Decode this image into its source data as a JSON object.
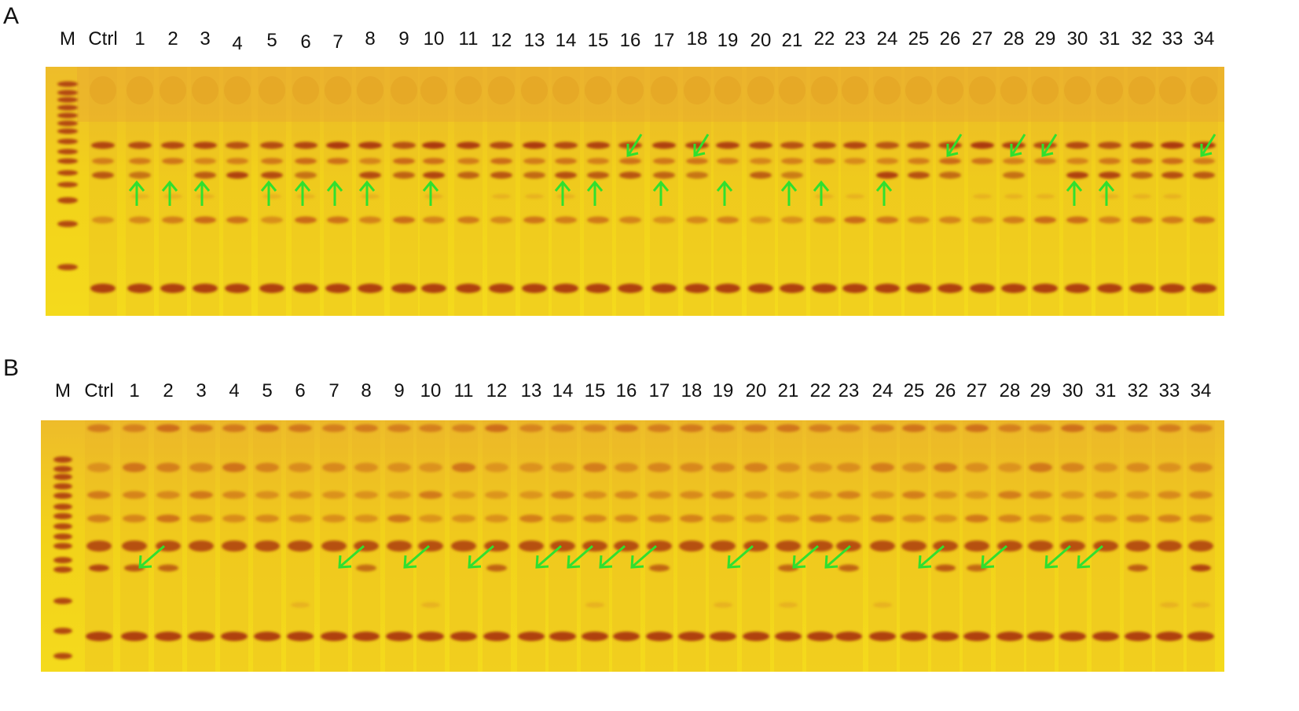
{
  "panels": [
    {
      "letter": "A",
      "lane_labels": [
        "M",
        "Ctrl",
        "1",
        "2",
        "3",
        "4",
        "5",
        "6",
        "7",
        "8",
        "9",
        "10",
        "11",
        "12",
        "13",
        "14",
        "15",
        "16",
        "17",
        "18",
        "19",
        "20",
        "21",
        "22",
        "23",
        "24",
        "25",
        "26",
        "27",
        "28",
        "29",
        "30",
        "31",
        "32",
        "33",
        "34"
      ],
      "arrow_direction": "up",
      "arrow_lanes": [
        "1",
        "2",
        "3",
        "5",
        "6",
        "7",
        "8",
        "10",
        "14",
        "15",
        "17",
        "19",
        "21",
        "22",
        "24",
        "30",
        "31"
      ],
      "diagonal_arrow_lanes": [
        "16",
        "18",
        "26",
        "28",
        "29",
        "34"
      ]
    },
    {
      "letter": "B",
      "lane_labels": [
        "M",
        "Ctrl",
        "1",
        "2",
        "3",
        "4",
        "5",
        "6",
        "7",
        "8",
        "9",
        "10",
        "11",
        "12",
        "13",
        "14",
        "15",
        "16",
        "17",
        "18",
        "19",
        "20",
        "21",
        "22",
        "23",
        "24",
        "25",
        "26",
        "27",
        "28",
        "29",
        "30",
        "31",
        "32",
        "33",
        "34"
      ],
      "arrow_direction": "down-left",
      "arrow_lanes": [
        "1",
        "7",
        "9",
        "11",
        "13",
        "14",
        "15",
        "16",
        "19",
        "21",
        "22",
        "25",
        "27",
        "29",
        "30"
      ]
    }
  ],
  "colors": {
    "gel_background": "#f2d21a",
    "gel_warm": "#eebc2a",
    "band_dark": "#a8320f",
    "band_mid": "#c55a12",
    "band_light": "#e09a20",
    "arrow": "#2fe02f"
  }
}
